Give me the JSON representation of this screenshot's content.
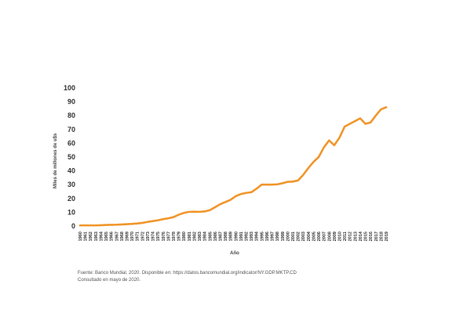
{
  "chart_data": {
    "type": "line",
    "title": "",
    "xlabel": "Año",
    "ylabel": "Miles de millones de u$s",
    "ylim": [
      0,
      100
    ],
    "yticks": [
      0,
      10,
      20,
      30,
      40,
      50,
      60,
      70,
      80,
      90,
      100
    ],
    "grid": false,
    "line_color": "#F0962B",
    "categories": [
      "1960",
      "1961",
      "1962",
      "1963",
      "1964",
      "1965",
      "1966",
      "1967",
      "1968",
      "1969",
      "1970",
      "1971",
      "1972",
      "1973",
      "1974",
      "1975",
      "1976",
      "1977",
      "1978",
      "1979",
      "1980",
      "1981",
      "1982",
      "1983",
      "1984",
      "1985",
      "1986",
      "1987",
      "1988",
      "1989",
      "1990",
      "1991",
      "1992",
      "1993",
      "1994",
      "1995",
      "1996",
      "1997",
      "1998",
      "1999",
      "2000",
      "2001",
      "2002",
      "2003",
      "2004",
      "2005",
      "2006",
      "2007",
      "2008",
      "2009",
      "2010",
      "2011",
      "2012",
      "2013",
      "2014",
      "2015",
      "2016",
      "2017",
      "2018",
      "2019"
    ],
    "values": [
      0.5,
      0.5,
      0.5,
      0.5,
      0.6,
      0.8,
      0.9,
      1.0,
      1.2,
      1.4,
      1.6,
      1.9,
      2.3,
      3.0,
      3.6,
      4.2,
      5.0,
      5.6,
      6.5,
      8.2,
      9.5,
      10.3,
      10.4,
      10.3,
      10.6,
      11.5,
      13.6,
      15.8,
      17.4,
      19.0,
      21.6,
      23.2,
      24.0,
      24.5,
      27.0,
      30.0,
      30.0,
      30.0,
      30.2,
      31.0,
      32.0,
      32.2,
      33.0,
      37.0,
      42.0,
      46.5,
      50.0,
      57.0,
      62.0,
      58.5,
      64.0,
      72.0,
      74.0,
      76.0,
      78.0,
      74.0,
      75.0,
      80.0,
      84.5,
      86.0
    ]
  },
  "source_note": {
    "line1": "Fuente: Banco Mundial, 2020. Disponible en: https://datos.bancomundial.org/indicator/NY.GDP.MKTP.CD",
    "line2": "Consultado en mayo de 2020."
  }
}
